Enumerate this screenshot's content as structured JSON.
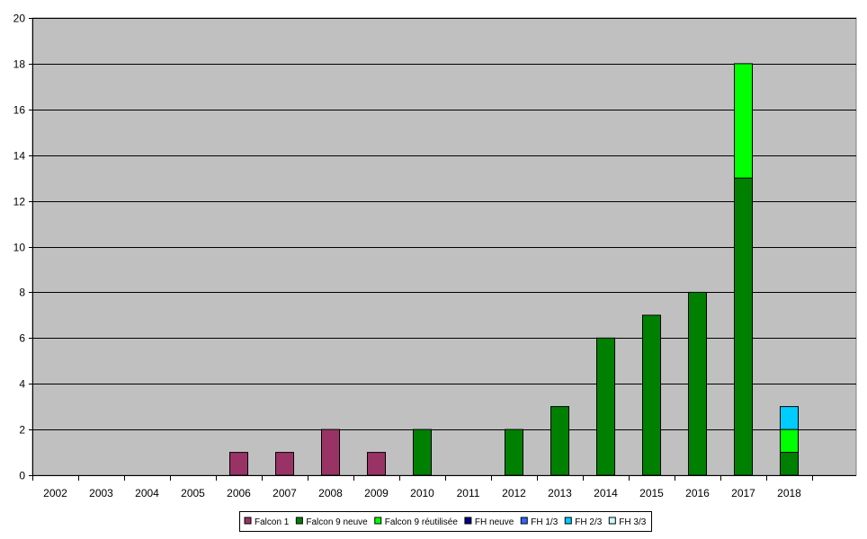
{
  "chart_data": {
    "type": "bar",
    "stacked": true,
    "categories": [
      "2002",
      "2003",
      "2004",
      "2005",
      "2006",
      "2007",
      "2008",
      "2009",
      "2010",
      "2011",
      "2012",
      "2013",
      "2014",
      "2015",
      "2016",
      "2017",
      "2018"
    ],
    "series": [
      {
        "name": "Falcon 1",
        "color": "#993366",
        "values": [
          0,
          0,
          0,
          0,
          1,
          1,
          2,
          1,
          0,
          0,
          0,
          0,
          0,
          0,
          0,
          0,
          0
        ]
      },
      {
        "name": "Falcon 9 neuve",
        "color": "#008000",
        "values": [
          0,
          0,
          0,
          0,
          0,
          0,
          0,
          0,
          2,
          0,
          2,
          3,
          6,
          7,
          8,
          13,
          1
        ]
      },
      {
        "name": "Falcon 9 réutilisée",
        "color": "#00ff00",
        "values": [
          0,
          0,
          0,
          0,
          0,
          0,
          0,
          0,
          0,
          0,
          0,
          0,
          0,
          0,
          0,
          5,
          1
        ]
      },
      {
        "name": "FH neuve",
        "color": "#000080",
        "values": [
          0,
          0,
          0,
          0,
          0,
          0,
          0,
          0,
          0,
          0,
          0,
          0,
          0,
          0,
          0,
          0,
          0
        ]
      },
      {
        "name": "FH 1/3",
        "color": "#3366ff",
        "values": [
          0,
          0,
          0,
          0,
          0,
          0,
          0,
          0,
          0,
          0,
          0,
          0,
          0,
          0,
          0,
          0,
          0
        ]
      },
      {
        "name": "FH 2/3",
        "color": "#00ccff",
        "values": [
          0,
          0,
          0,
          0,
          0,
          0,
          0,
          0,
          0,
          0,
          0,
          0,
          0,
          0,
          0,
          0,
          1
        ]
      },
      {
        "name": "FH 3/3",
        "color": "#ccffff",
        "values": [
          0,
          0,
          0,
          0,
          0,
          0,
          0,
          0,
          0,
          0,
          0,
          0,
          0,
          0,
          0,
          0,
          0
        ]
      }
    ],
    "ylim": [
      0,
      20
    ],
    "yticks": [
      0,
      2,
      4,
      6,
      8,
      10,
      12,
      14,
      16,
      18,
      20
    ],
    "grid": true,
    "plot_background": "#c0c0c0",
    "legend": "bottom",
    "title": "",
    "xlabel": "",
    "ylabel": ""
  }
}
